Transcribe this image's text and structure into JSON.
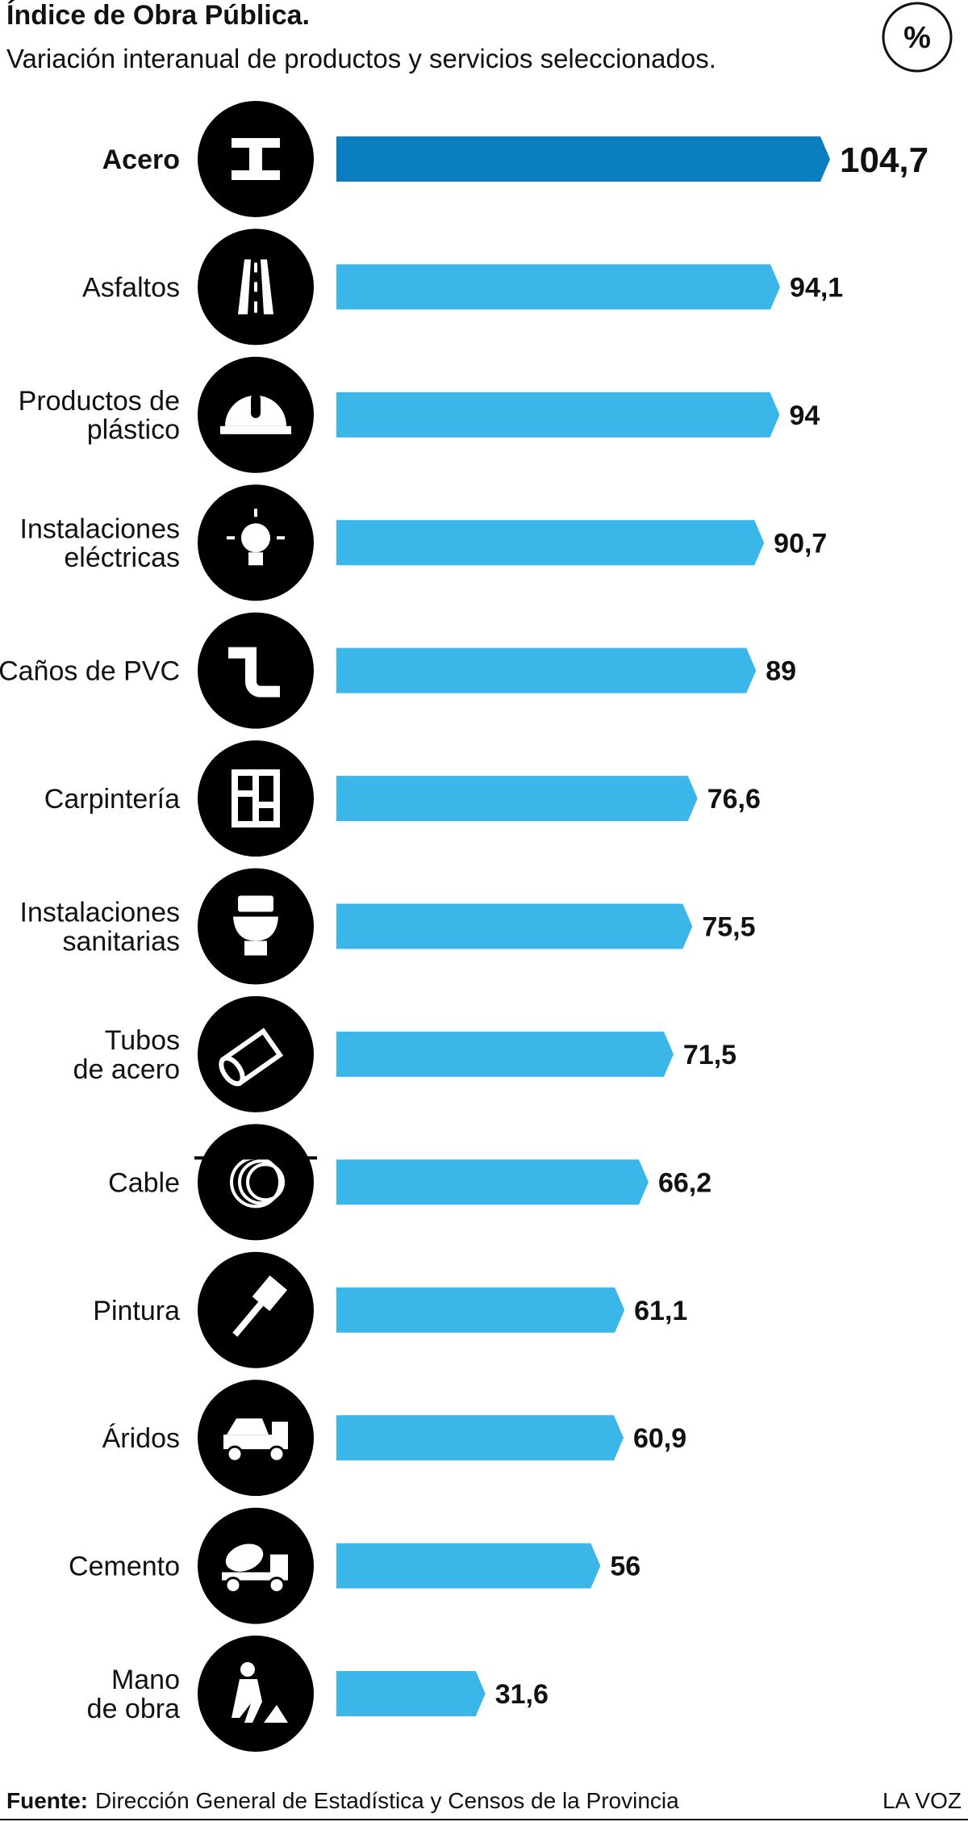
{
  "chart_data": {
    "type": "bar",
    "orientation": "horizontal",
    "title": "Índice de Obra Pública.",
    "subtitle": "Variación interanual de productos y servicios seleccionados.",
    "unit_badge": "%",
    "categories": [
      "Acero",
      "Asfaltos",
      "Productos de\nplástico",
      "Instalaciones\neléctricas",
      "Caños de PVC",
      "Carpintería",
      "Instalaciones\nsanitarias",
      "Tubos\nde acero",
      "Cable",
      "Pintura",
      "Áridos",
      "Cemento",
      "Mano\nde obra"
    ],
    "values": [
      104.7,
      94.1,
      94,
      90.7,
      89,
      76.6,
      75.5,
      71.5,
      66.2,
      61.1,
      60.9,
      56,
      31.6
    ],
    "value_labels": [
      "104,7",
      "94,1",
      "94",
      "90,7",
      "89",
      "76,6",
      "75,5",
      "71,5",
      "66,2",
      "61,1",
      "60,9",
      "56",
      "31,6"
    ],
    "colors": [
      "#0a7fc0",
      "#3ab6e8",
      "#3ab6e8",
      "#3ab6e8",
      "#3ab6e8",
      "#3ab6e8",
      "#3ab6e8",
      "#3ab6e8",
      "#3ab6e8",
      "#3ab6e8",
      "#3ab6e8",
      "#3ab6e8",
      "#3ab6e8"
    ],
    "source_label": "Fuente:",
    "source": "Dirección General de Estadística y Censos de la Provincia",
    "brand": "LA VOZ"
  }
}
